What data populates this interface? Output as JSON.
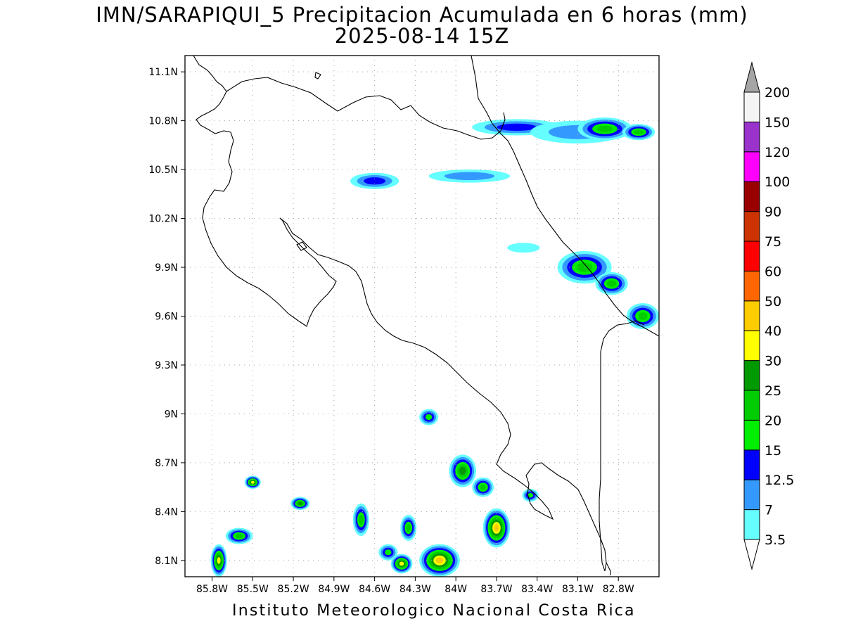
{
  "title_line1": "IMN/SARAPIQUI_5 Precipitacion Acumulada en 6 horas (mm)",
  "title_line2": "2025-08-14 15Z",
  "footer": "Instituto Meteorologico Nacional Costa Rica",
  "map": {
    "lon_range": [
      -86.0,
      -82.5
    ],
    "lat_range": [
      8.0,
      11.2
    ],
    "lon_ticks": [
      {
        "value": -85.8,
        "label": "85.8W"
      },
      {
        "value": -85.5,
        "label": "85.5W"
      },
      {
        "value": -85.2,
        "label": "85.2W"
      },
      {
        "value": -84.9,
        "label": "84.9W"
      },
      {
        "value": -84.6,
        "label": "84.6W"
      },
      {
        "value": -84.3,
        "label": "84.3W"
      },
      {
        "value": -84.0,
        "label": "84W"
      },
      {
        "value": -83.7,
        "label": "83.7W"
      },
      {
        "value": -83.4,
        "label": "83.4W"
      },
      {
        "value": -83.1,
        "label": "83.1W"
      },
      {
        "value": -82.8,
        "label": "82.8W"
      }
    ],
    "lat_ticks": [
      {
        "value": 8.1,
        "label": "8.1N"
      },
      {
        "value": 8.4,
        "label": "8.4N"
      },
      {
        "value": 8.7,
        "label": "8.7N"
      },
      {
        "value": 9.0,
        "label": "9N"
      },
      {
        "value": 9.3,
        "label": "9.3N"
      },
      {
        "value": 9.6,
        "label": "9.6N"
      },
      {
        "value": 9.9,
        "label": "9.9N"
      },
      {
        "value": 10.2,
        "label": "10.2N"
      },
      {
        "value": 10.5,
        "label": "10.5N"
      },
      {
        "value": 10.8,
        "label": "10.8N"
      },
      {
        "value": 11.1,
        "label": "11.1N"
      }
    ],
    "grid": true,
    "grid_color": "#a8a8a8"
  },
  "colorbar": {
    "levels": [
      "3.5",
      "7",
      "12.5",
      "15",
      "20",
      "25",
      "30",
      "40",
      "50",
      "60",
      "75",
      "90",
      "100",
      "120",
      "150",
      "200"
    ],
    "colors": [
      "#66ffff",
      "#3399ff",
      "#0000ff",
      "#00ee00",
      "#00cc00",
      "#009900",
      "#ffff00",
      "#ffcc00",
      "#ff6600",
      "#ff0000",
      "#cc3300",
      "#990000",
      "#ff00ff",
      "#9933cc",
      "#f4f4f4"
    ],
    "under_color": "#ffffff",
    "over_color": "#a6a6a6"
  },
  "precip_cells": [
    {
      "lon": -83.55,
      "lat": 10.76,
      "rx": 0.33,
      "ry": 0.05,
      "level": 2
    },
    {
      "lon": -83.1,
      "lat": 10.73,
      "rx": 0.35,
      "ry": 0.07,
      "level": 1
    },
    {
      "lon": -82.9,
      "lat": 10.75,
      "rx": 0.2,
      "ry": 0.07,
      "level": 4
    },
    {
      "lon": -82.65,
      "lat": 10.73,
      "rx": 0.12,
      "ry": 0.05,
      "level": 4
    },
    {
      "lon": -84.6,
      "lat": 10.43,
      "rx": 0.18,
      "ry": 0.05,
      "level": 2
    },
    {
      "lon": -83.9,
      "lat": 10.46,
      "rx": 0.3,
      "ry": 0.04,
      "level": 1
    },
    {
      "lon": -83.5,
      "lat": 10.02,
      "rx": 0.12,
      "ry": 0.03,
      "level": 0
    },
    {
      "lon": -83.05,
      "lat": 9.9,
      "rx": 0.2,
      "ry": 0.1,
      "level": 4
    },
    {
      "lon": -82.85,
      "lat": 9.8,
      "rx": 0.12,
      "ry": 0.07,
      "level": 4
    },
    {
      "lon": -82.62,
      "lat": 9.6,
      "rx": 0.12,
      "ry": 0.08,
      "level": 4
    },
    {
      "lon": -84.2,
      "lat": 8.98,
      "rx": 0.07,
      "ry": 0.05,
      "level": 3
    },
    {
      "lon": -83.95,
      "lat": 8.65,
      "rx": 0.1,
      "ry": 0.1,
      "level": 5
    },
    {
      "lon": -83.8,
      "lat": 8.55,
      "rx": 0.08,
      "ry": 0.06,
      "level": 4
    },
    {
      "lon": -83.7,
      "lat": 8.3,
      "rx": 0.1,
      "ry": 0.12,
      "level": 7
    },
    {
      "lon": -84.12,
      "lat": 8.1,
      "rx": 0.15,
      "ry": 0.1,
      "level": 7
    },
    {
      "lon": -84.4,
      "lat": 8.08,
      "rx": 0.08,
      "ry": 0.06,
      "level": 6
    },
    {
      "lon": -85.75,
      "lat": 8.1,
      "rx": 0.06,
      "ry": 0.1,
      "level": 6
    },
    {
      "lon": -85.5,
      "lat": 8.58,
      "rx": 0.06,
      "ry": 0.04,
      "level": 6
    },
    {
      "lon": -85.15,
      "lat": 8.45,
      "rx": 0.07,
      "ry": 0.04,
      "level": 5
    },
    {
      "lon": -84.7,
      "lat": 8.35,
      "rx": 0.06,
      "ry": 0.1,
      "level": 4
    },
    {
      "lon": -84.35,
      "lat": 8.3,
      "rx": 0.06,
      "ry": 0.08,
      "level": 4
    },
    {
      "lon": -85.6,
      "lat": 8.25,
      "rx": 0.1,
      "ry": 0.05,
      "level": 4
    },
    {
      "lon": -83.45,
      "lat": 8.5,
      "rx": 0.06,
      "ry": 0.04,
      "level": 3
    },
    {
      "lon": -84.5,
      "lat": 8.15,
      "rx": 0.07,
      "ry": 0.05,
      "level": 3
    }
  ]
}
